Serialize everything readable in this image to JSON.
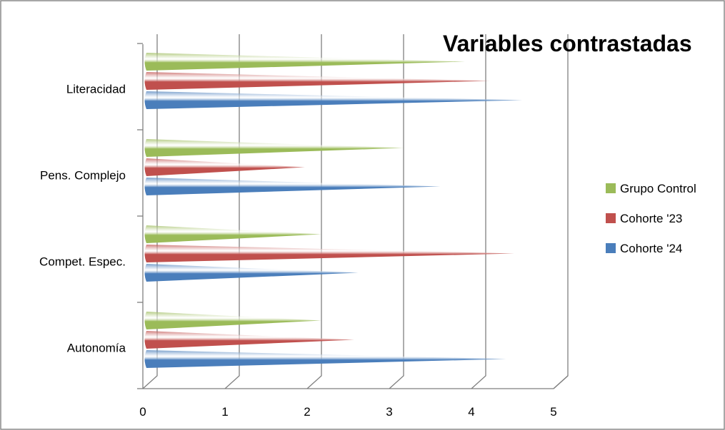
{
  "chart_data": {
    "type": "bar",
    "orientation": "horizontal",
    "style": "3d-cone",
    "title": "Variables contrastadas",
    "categories": [
      "Autonomía",
      "Compet. Espec.",
      "Pens. Complejo",
      "Literacidad"
    ],
    "series": [
      {
        "name": "Cohorte '24",
        "color": "#4a7ebb",
        "values": [
          4.3,
          2.5,
          3.5,
          4.5
        ]
      },
      {
        "name": "Cohorte '23",
        "color": "#c0504d",
        "values": [
          2.45,
          4.4,
          1.85,
          4.1
        ]
      },
      {
        "name": "Grupo Control",
        "color": "#9bbb59",
        "values": [
          2.05,
          2.05,
          3.05,
          3.8
        ]
      }
    ],
    "xticks": [
      "0",
      "1",
      "2",
      "3",
      "4",
      "5"
    ],
    "xlim": [
      0,
      5
    ],
    "grid": true,
    "legend": "right"
  }
}
